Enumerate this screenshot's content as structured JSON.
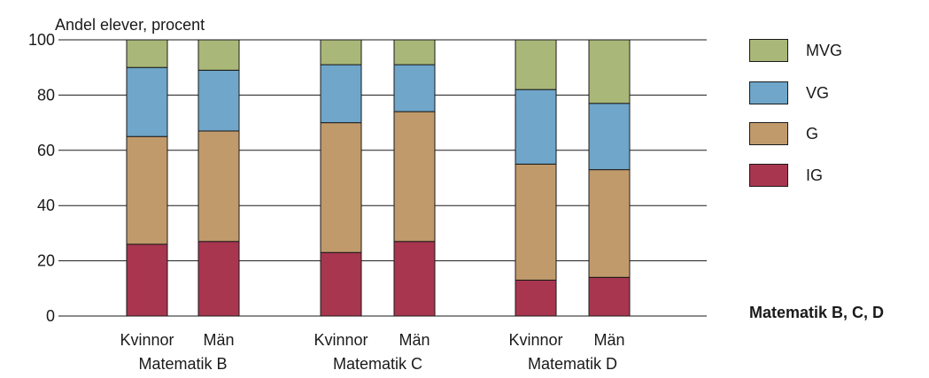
{
  "chart_data": {
    "type": "bar",
    "stacked": true,
    "title": "Matematik B, C, D",
    "ylabel": "Andel elever, procent",
    "ylim": [
      0,
      100
    ],
    "yticks": [
      0,
      20,
      40,
      60,
      80,
      100
    ],
    "grid": true,
    "legend_position": "right",
    "groups": [
      {
        "label": "Matematik B",
        "categories": [
          "Kvinnor",
          "Män"
        ]
      },
      {
        "label": "Matematik C",
        "categories": [
          "Kvinnor",
          "Män"
        ]
      },
      {
        "label": "Matematik D",
        "categories": [
          "Kvinnor",
          "Män"
        ]
      }
    ],
    "categories": [
      "Kvinnor",
      "Män",
      "Kvinnor",
      "Män",
      "Kvinnor",
      "Män"
    ],
    "series": [
      {
        "name": "IG",
        "color": "#a8364f",
        "values": [
          26,
          27,
          23,
          27,
          13,
          14
        ]
      },
      {
        "name": "G",
        "color": "#c19a6b",
        "values": [
          39,
          40,
          47,
          47,
          42,
          39
        ]
      },
      {
        "name": "VG",
        "color": "#6fa6c9",
        "values": [
          25,
          22,
          21,
          17,
          27,
          24
        ]
      },
      {
        "name": "MVG",
        "color": "#a9b878",
        "values": [
          10,
          11,
          9,
          9,
          18,
          23
        ]
      }
    ],
    "legend_order": [
      "MVG",
      "VG",
      "G",
      "IG"
    ]
  }
}
